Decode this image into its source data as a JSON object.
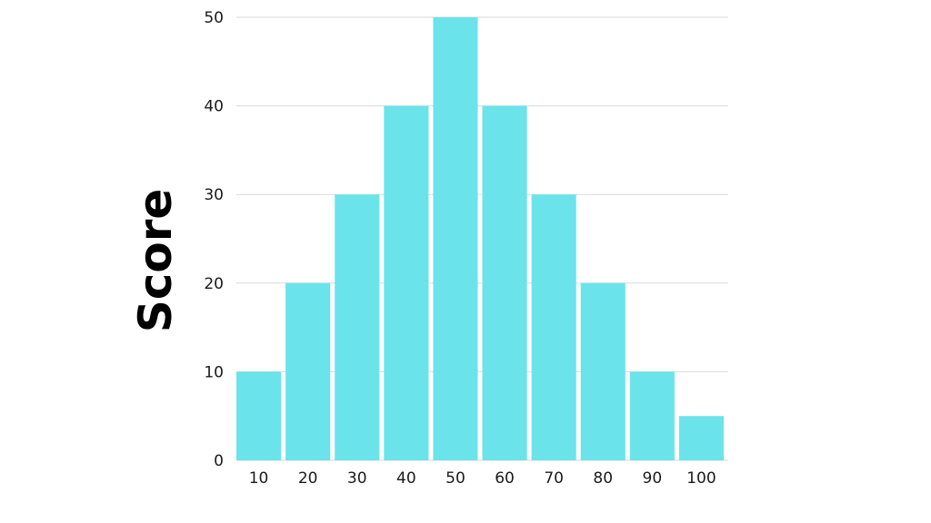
{
  "chart_data": {
    "type": "bar",
    "title": "",
    "xlabel": "",
    "ylabel": "Score",
    "categories": [
      "10",
      "20",
      "30",
      "40",
      "50",
      "60",
      "70",
      "80",
      "90",
      "100"
    ],
    "values": [
      10,
      20,
      30,
      40,
      50,
      40,
      30,
      20,
      10,
      5
    ],
    "ylim": [
      0,
      50
    ],
    "yticks": [
      0,
      10,
      20,
      30,
      40,
      50
    ],
    "grid": true,
    "legend": "none",
    "colors": {
      "bar": "#6ae4ea",
      "grid": "#d9d9d9",
      "text": "#1a1a1a",
      "label": "#000000"
    }
  }
}
